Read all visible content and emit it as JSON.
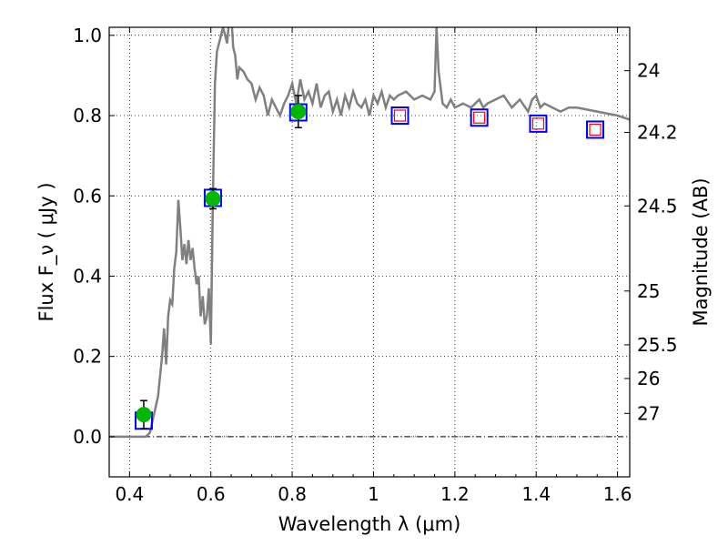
{
  "chart_data": {
    "type": "line",
    "xlabel": "Wavelength  λ (μm)",
    "ylabel": "Flux  F_ν  ( μJy )",
    "ylabel_right": "Magnitude (AB)",
    "xlim": [
      0.35,
      1.63
    ],
    "ylim": [
      -0.1,
      1.02
    ],
    "x_ticks": [
      0.4,
      0.6,
      0.8,
      1.0,
      1.2,
      1.4,
      1.6
    ],
    "x_tick_labels": [
      "0.4",
      "0.6",
      "0.8",
      "1",
      "1.2",
      "1.4",
      "1.6"
    ],
    "y_ticks": [
      0.0,
      0.2,
      0.4,
      0.6,
      0.8,
      1.0
    ],
    "y_tick_labels": [
      "0.0",
      "0.2",
      "0.4",
      "0.6",
      "0.8",
      "1.0"
    ],
    "right_ticks": [
      {
        "label": "24",
        "flux": 0.912
      },
      {
        "label": "24.2",
        "flux": 0.758
      },
      {
        "label": "24.5",
        "flux": 0.575
      },
      {
        "label": "25",
        "flux": 0.363
      },
      {
        "label": "25.5",
        "flux": 0.229
      },
      {
        "label": "26",
        "flux": 0.145
      },
      {
        "label": "27",
        "flux": 0.058
      }
    ],
    "grid": true,
    "colors": {
      "sed": "#808080",
      "observed": "#00b800",
      "model_box": "#0000ff",
      "pred_box": "#ff0000",
      "errorbar": "#000000"
    },
    "series": [
      {
        "style": "line",
        "color": "#808080",
        "x": [
          0.35,
          0.44,
          0.45,
          0.47,
          0.48,
          0.485,
          0.49,
          0.495,
          0.5,
          0.505,
          0.51,
          0.515,
          0.52,
          0.525,
          0.53,
          0.535,
          0.54,
          0.545,
          0.55,
          0.555,
          0.56,
          0.565,
          0.57,
          0.575,
          0.58,
          0.585,
          0.59,
          0.595,
          0.6,
          0.605,
          0.61,
          0.615,
          0.62,
          0.63,
          0.64,
          0.645,
          0.65,
          0.655,
          0.66,
          0.665,
          0.67,
          0.68,
          0.69,
          0.7,
          0.71,
          0.72,
          0.73,
          0.74,
          0.75,
          0.76,
          0.77,
          0.78,
          0.79,
          0.8,
          0.81,
          0.82,
          0.83,
          0.84,
          0.85,
          0.86,
          0.87,
          0.88,
          0.89,
          0.9,
          0.91,
          0.92,
          0.93,
          0.94,
          0.95,
          0.96,
          0.97,
          0.98,
          0.99,
          1.0,
          1.01,
          1.02,
          1.03,
          1.04,
          1.05,
          1.06,
          1.08,
          1.1,
          1.12,
          1.14,
          1.15,
          1.155,
          1.16,
          1.165,
          1.17,
          1.18,
          1.19,
          1.2,
          1.22,
          1.24,
          1.25,
          1.26,
          1.27,
          1.28,
          1.3,
          1.32,
          1.34,
          1.36,
          1.38,
          1.39,
          1.4,
          1.41,
          1.42,
          1.44,
          1.46,
          1.48,
          1.5,
          1.55,
          1.6,
          1.63
        ],
        "y": [
          0.0,
          0.0,
          0.01,
          0.1,
          0.2,
          0.27,
          0.18,
          0.3,
          0.34,
          0.33,
          0.42,
          0.46,
          0.59,
          0.52,
          0.44,
          0.48,
          0.43,
          0.49,
          0.44,
          0.47,
          0.42,
          0.38,
          0.4,
          0.3,
          0.35,
          0.28,
          0.3,
          0.37,
          0.23,
          0.6,
          0.88,
          0.96,
          0.98,
          1.02,
          0.98,
          1.04,
          1.05,
          0.97,
          0.95,
          0.89,
          0.92,
          0.91,
          0.89,
          0.88,
          0.84,
          0.87,
          0.85,
          0.8,
          0.84,
          0.82,
          0.8,
          0.83,
          0.85,
          0.88,
          0.83,
          0.89,
          0.84,
          0.86,
          0.83,
          0.88,
          0.82,
          0.85,
          0.86,
          0.81,
          0.84,
          0.8,
          0.85,
          0.82,
          0.86,
          0.83,
          0.82,
          0.84,
          0.8,
          0.85,
          0.83,
          0.86,
          0.82,
          0.85,
          0.84,
          0.85,
          0.86,
          0.84,
          0.85,
          0.84,
          0.86,
          1.02,
          0.91,
          0.87,
          0.83,
          0.82,
          0.84,
          0.82,
          0.83,
          0.82,
          0.83,
          0.84,
          0.82,
          0.83,
          0.84,
          0.85,
          0.82,
          0.84,
          0.81,
          0.84,
          0.85,
          0.82,
          0.83,
          0.82,
          0.81,
          0.82,
          0.82,
          0.81,
          0.8,
          0.79
        ]
      },
      {
        "style": "observed_points",
        "x": [
          0.435,
          0.605,
          0.815
        ],
        "y": [
          0.055,
          0.593,
          0.81
        ],
        "err": [
          0.035,
          0.025,
          0.04
        ]
      },
      {
        "style": "model_boxes",
        "x": [
          0.435,
          0.605,
          0.815,
          1.065,
          1.26,
          1.405,
          1.545
        ],
        "y": [
          0.04,
          0.595,
          0.808,
          0.8,
          0.795,
          0.78,
          0.765
        ]
      },
      {
        "style": "pred_boxes",
        "x": [
          1.065,
          1.26,
          1.405,
          1.545
        ],
        "y": [
          0.8,
          0.795,
          0.78,
          0.765
        ]
      }
    ]
  }
}
